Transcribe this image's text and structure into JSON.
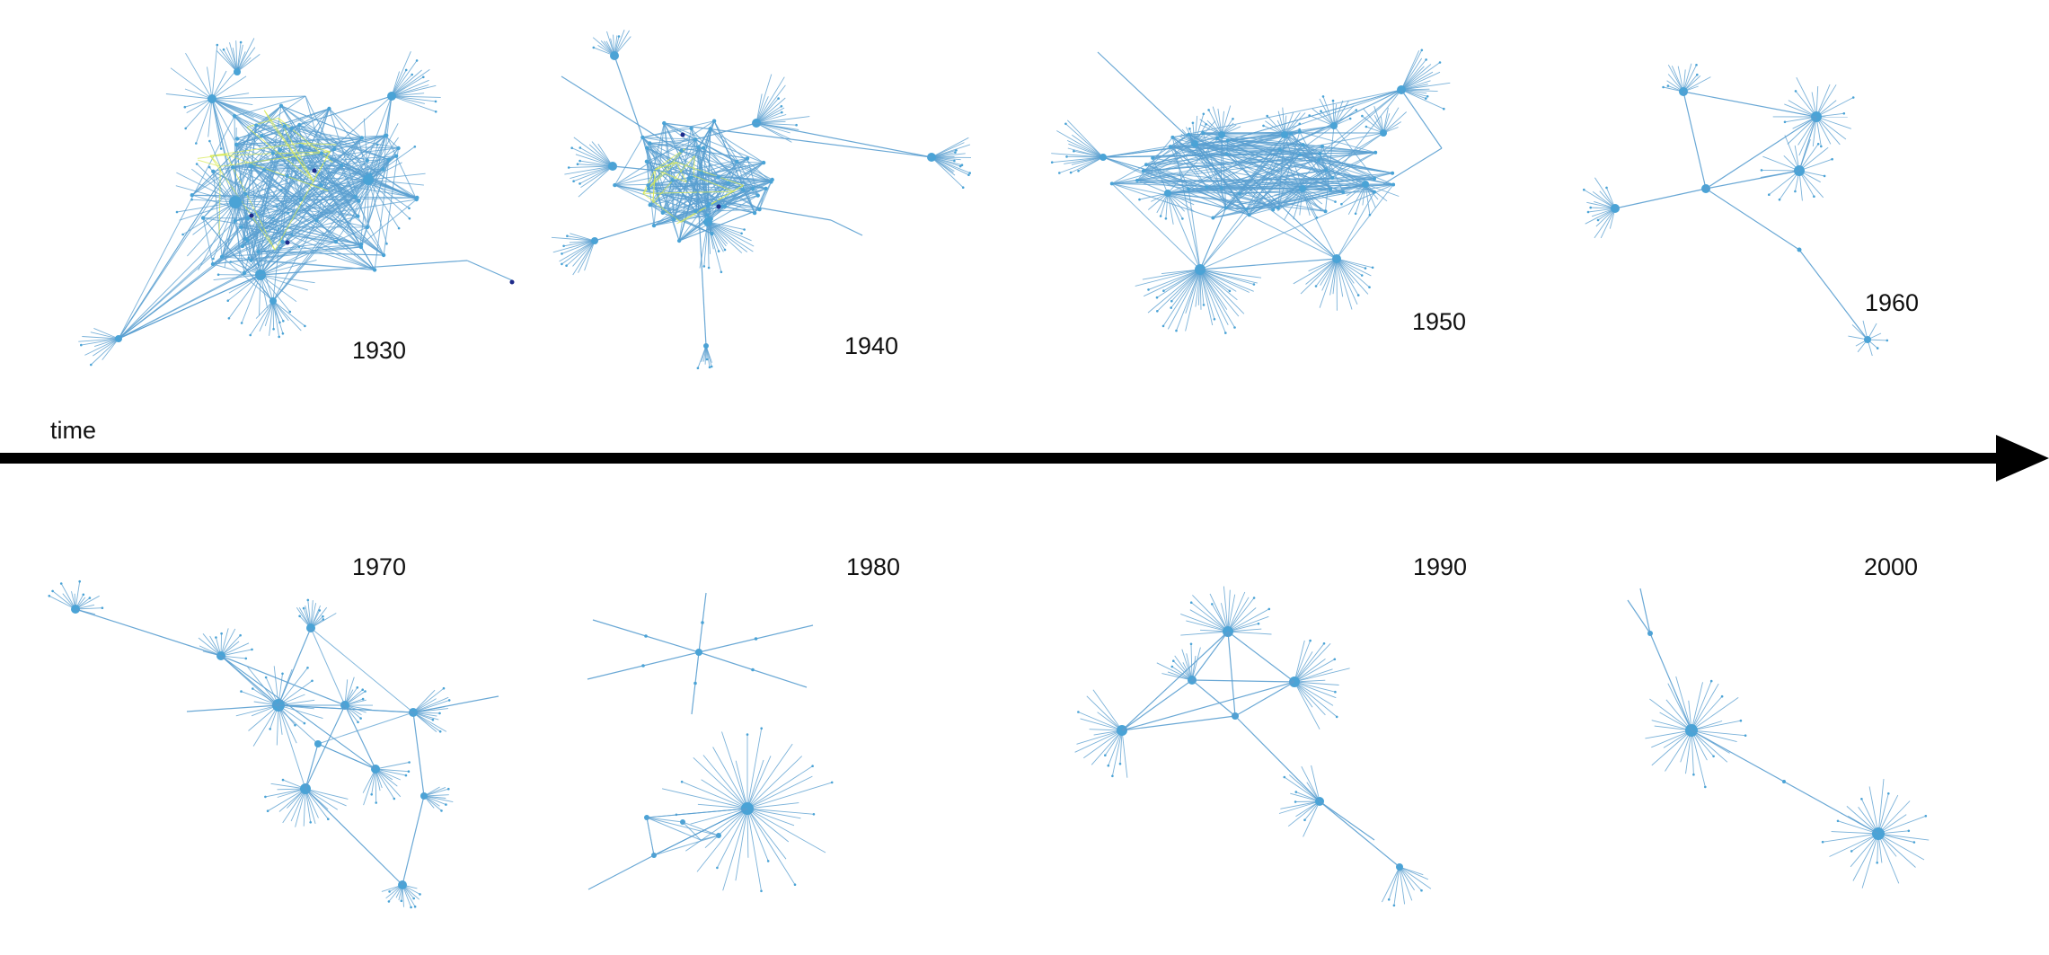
{
  "timeline": {
    "axis_label": "time",
    "periods": [
      {
        "year": "1930"
      },
      {
        "year": "1940"
      },
      {
        "year": "1950"
      },
      {
        "year": "1960"
      },
      {
        "year": "1970"
      },
      {
        "year": "1980"
      },
      {
        "year": "1990"
      },
      {
        "year": "2000"
      }
    ]
  },
  "colors": {
    "edge": "#5a9fd0",
    "node": "#4aa3d6",
    "highlight_yellow": "#d8ea57",
    "highlight_dark": "#1e2a8a",
    "arrow": "#000000",
    "background": "#ffffff"
  }
}
